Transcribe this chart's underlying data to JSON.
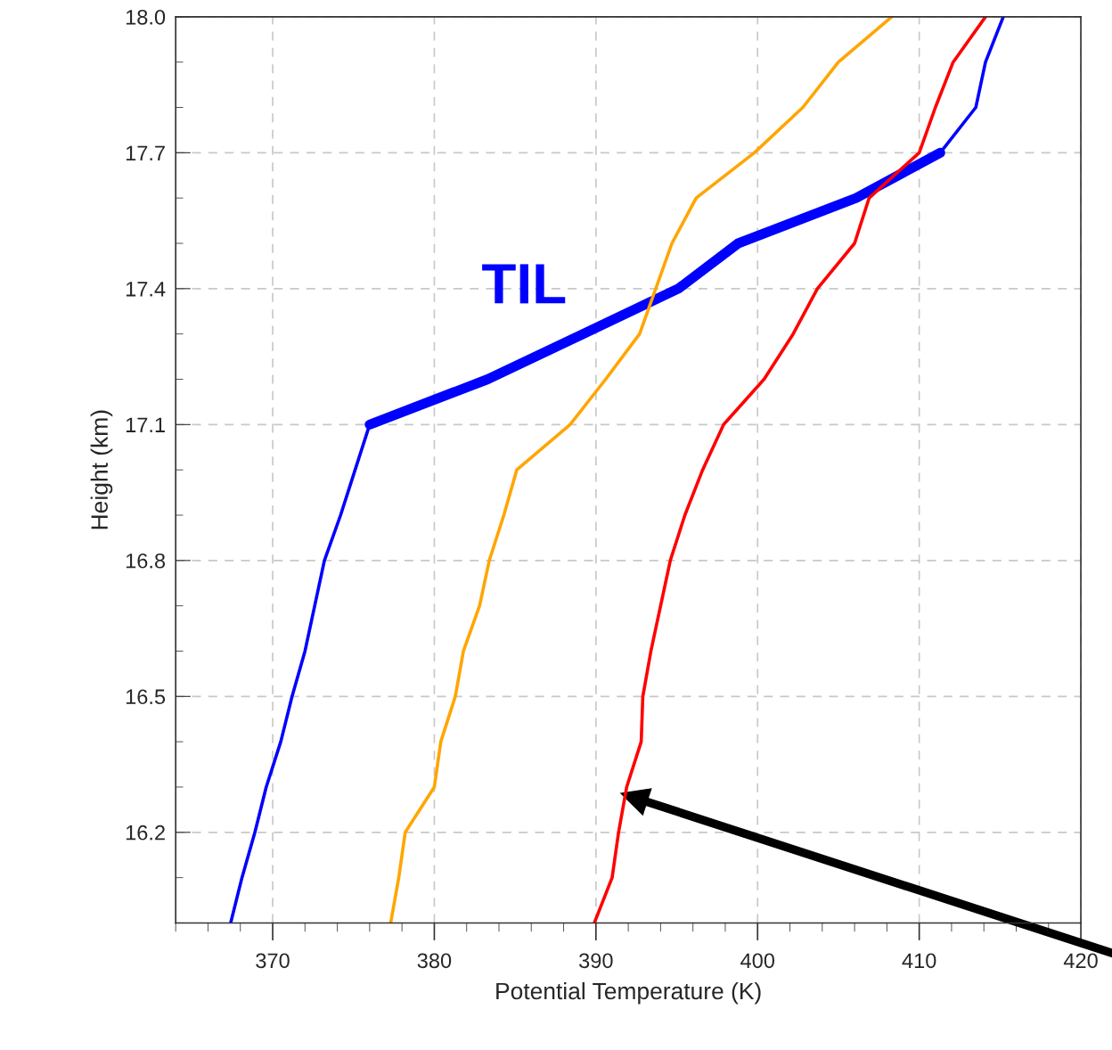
{
  "chart_data": {
    "type": "line",
    "xlabel": "Potential Temperature (K)",
    "ylabel": "Height (km)",
    "xlim": [
      364,
      420
    ],
    "xticks": [
      370,
      380,
      390,
      400,
      410,
      420
    ],
    "ylim": [
      16.0,
      18.0
    ],
    "yticks": [
      16.2,
      16.5,
      16.8,
      17.1,
      17.4,
      17.7,
      {
        "value": 18.0,
        "label": "18.0"
      }
    ],
    "grid": true,
    "line_style": "solid",
    "marker": "none",
    "series": [
      {
        "color": "#0000ff",
        "x": [
          367.4,
          368.1,
          368.9,
          369.6,
          370.5,
          371.2,
          372.0,
          372.6,
          373.2,
          374.2,
          375.1,
          376.0
        ],
        "values": [
          16.0,
          16.1,
          16.2,
          16.3,
          16.4,
          16.5,
          16.6,
          16.7,
          16.8,
          16.9,
          17.0,
          17.1
        ]
      },
      {
        "color": "#0000ff",
        "x": [
          376.0,
          383.3,
          389.2,
          395.1,
          398.8,
          406.1,
          411.3
        ],
        "values": [
          17.1,
          17.2,
          17.3,
          17.4,
          17.5,
          17.6,
          17.7
        ]
      },
      {
        "color": "#0000ff",
        "x": [
          411.3,
          413.5,
          414.1,
          415.2
        ],
        "values": [
          17.7,
          17.8,
          17.9,
          18.0
        ]
      },
      {
        "color": "#ffa500",
        "x": [
          377.3,
          377.8,
          378.2,
          380.0,
          380.4,
          381.3,
          381.8,
          382.8,
          383.4,
          384.3,
          385.1,
          388.4,
          390.6,
          392.7,
          393.7,
          394.7,
          396.2,
          399.8,
          402.8,
          405.0,
          408.3
        ],
        "values": [
          16.0,
          16.1,
          16.2,
          16.3,
          16.4,
          16.5,
          16.6,
          16.7,
          16.8,
          16.9,
          17.0,
          17.1,
          17.2,
          17.3,
          17.4,
          17.5,
          17.6,
          17.7,
          17.8,
          17.9,
          18.0
        ]
      },
      {
        "color": "#ff0000",
        "x": [
          389.9,
          391.0,
          391.4,
          391.9,
          392.8,
          392.9,
          393.4,
          394.0,
          394.6,
          395.5,
          396.6,
          397.9,
          400.4,
          402.2,
          403.7,
          406.0,
          406.9,
          410.0,
          411.0,
          412.1,
          414.1
        ],
        "values": [
          16.0,
          16.1,
          16.2,
          16.3,
          16.4,
          16.5,
          16.6,
          16.7,
          16.8,
          16.9,
          17.0,
          17.1,
          17.2,
          17.3,
          17.4,
          17.5,
          17.6,
          17.7,
          17.8,
          17.9,
          18.0
        ]
      }
    ],
    "annotations": [
      "TIL"
    ]
  }
}
